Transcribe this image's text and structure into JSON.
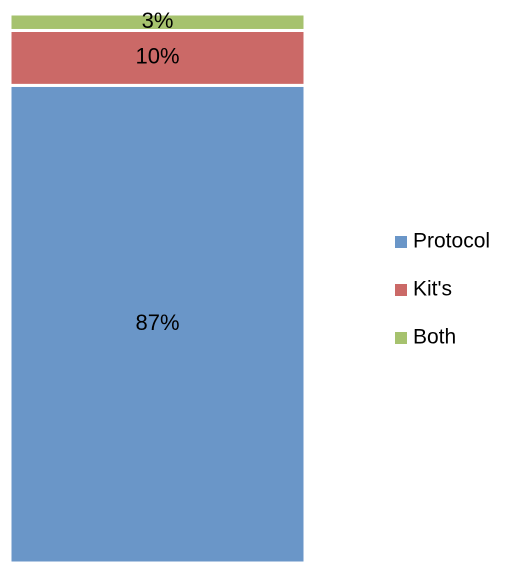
{
  "chart_data": {
    "type": "stacked_bar",
    "legend": "right",
    "series": [
      {
        "name": "Protocol",
        "color": "#6a96c8",
        "values": [
          87
        ],
        "value_labels": [
          "87%"
        ]
      },
      {
        "name": "Kit's",
        "color": "#cb6967",
        "values": [
          10
        ],
        "value_labels": [
          "10%"
        ]
      },
      {
        "name": "Both",
        "color": "#a6c26e",
        "values": [
          3
        ],
        "value_labels": [
          "3%"
        ]
      }
    ]
  }
}
